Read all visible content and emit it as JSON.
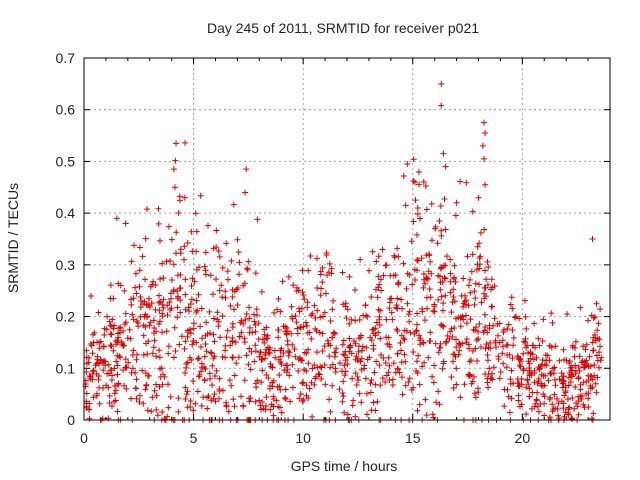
{
  "chart_data": {
    "type": "scatter",
    "title": "Day 245 of 2011, SRMTID for receiver p021",
    "xlabel": "GPS time / hours",
    "ylabel": "SRMTID / TECUs",
    "xlim": [
      0,
      24
    ],
    "ylim": [
      0,
      0.7
    ],
    "xticks": [
      0,
      5,
      10,
      15,
      20
    ],
    "xtick_labels": [
      "0",
      "5",
      "10",
      "15",
      "20"
    ],
    "yticks": [
      0,
      0.1,
      0.2,
      0.3,
      0.4,
      0.5,
      0.6,
      0.7
    ],
    "ytick_labels": [
      "0",
      "0.1",
      "0.2",
      "0.3",
      "0.4",
      "0.5",
      "0.6",
      "0.7"
    ],
    "grid": true,
    "marker": "+",
    "color": "#e00000",
    "baseline_envelope": {
      "x": [
        0,
        1,
        2,
        3,
        4,
        4.5,
        5,
        5.5,
        6,
        7,
        7.5,
        8,
        8.5,
        9,
        10,
        11,
        12,
        13,
        14,
        15,
        16,
        17,
        18,
        19,
        20,
        21,
        22,
        23,
        23.6
      ],
      "y": [
        0.08,
        0.11,
        0.14,
        0.16,
        0.2,
        0.22,
        0.2,
        0.17,
        0.15,
        0.18,
        0.15,
        0.11,
        0.1,
        0.1,
        0.15,
        0.17,
        0.12,
        0.13,
        0.17,
        0.22,
        0.2,
        0.19,
        0.18,
        0.14,
        0.11,
        0.07,
        0.06,
        0.08,
        0.12
      ]
    },
    "peaks": [
      {
        "x": 4.2,
        "y": 0.535
      },
      {
        "x": 4.1,
        "y": 0.485
      },
      {
        "x": 4.15,
        "y": 0.45
      },
      {
        "x": 7.4,
        "y": 0.485
      },
      {
        "x": 7.35,
        "y": 0.44
      },
      {
        "x": 14.75,
        "y": 0.495
      },
      {
        "x": 15.1,
        "y": 0.46
      },
      {
        "x": 16.3,
        "y": 0.65
      },
      {
        "x": 16.3,
        "y": 0.608
      },
      {
        "x": 16.4,
        "y": 0.515
      },
      {
        "x": 16.5,
        "y": 0.49
      },
      {
        "x": 18.25,
        "y": 0.575
      },
      {
        "x": 18.3,
        "y": 0.555
      },
      {
        "x": 18.2,
        "y": 0.53
      },
      {
        "x": 18.25,
        "y": 0.505
      },
      {
        "x": 18.3,
        "y": 0.455
      },
      {
        "x": 1.5,
        "y": 0.39
      },
      {
        "x": 1.9,
        "y": 0.38
      },
      {
        "x": 4.6,
        "y": 0.43
      },
      {
        "x": 17.0,
        "y": 0.42
      },
      {
        "x": 23.2,
        "y": 0.35
      },
      {
        "x": 12.6,
        "y": 0.31
      }
    ],
    "zero_cluster": [
      {
        "x": 7.5,
        "y": 0.0
      },
      {
        "x": 7.55,
        "y": 0.0
      },
      {
        "x": 7.6,
        "y": 0.0
      },
      {
        "x": 21.2,
        "y": 0.0
      },
      {
        "x": 21.9,
        "y": 0.0
      },
      {
        "x": 22.5,
        "y": 0.0
      }
    ],
    "n_points": 1600,
    "x_range": [
      0,
      23.6
    ]
  }
}
